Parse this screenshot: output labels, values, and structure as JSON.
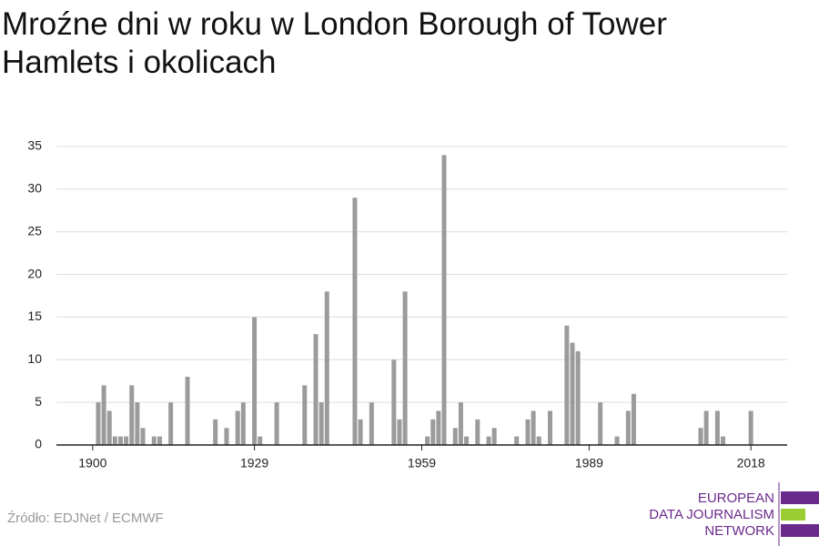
{
  "chart_data": {
    "type": "bar",
    "title": "Mroźne dni w roku w London Borough of Tower Hamlets i okolicach",
    "x": [
      1901,
      1902,
      1903,
      1904,
      1905,
      1906,
      1907,
      1908,
      1909,
      1911,
      1912,
      1914,
      1917,
      1922,
      1924,
      1926,
      1927,
      1929,
      1930,
      1933,
      1938,
      1940,
      1941,
      1942,
      1947,
      1948,
      1950,
      1954,
      1955,
      1956,
      1960,
      1961,
      1962,
      1963,
      1965,
      1966,
      1967,
      1969,
      1971,
      1972,
      1976,
      1978,
      1979,
      1980,
      1982,
      1985,
      1986,
      1987,
      1991,
      1994,
      1996,
      1997,
      2009,
      2010,
      2012,
      2013,
      2018
    ],
    "values": [
      5,
      7,
      4,
      1,
      1,
      1,
      7,
      5,
      2,
      1,
      1,
      5,
      8,
      3,
      2,
      4,
      5,
      15,
      1,
      5,
      7,
      13,
      5,
      18,
      29,
      3,
      5,
      10,
      3,
      18,
      1,
      3,
      4,
      34,
      2,
      5,
      1,
      3,
      1,
      2,
      1,
      3,
      4,
      1,
      4,
      14,
      12,
      11,
      5,
      1,
      4,
      6,
      2,
      4,
      4,
      1,
      4
    ],
    "color": "#9b9b9b",
    "xlim": [
      1893.5,
      2024.5
    ],
    "xticks": [
      1900,
      1929,
      1959,
      1989,
      2018
    ],
    "ylim": [
      0,
      35
    ],
    "yticks": [
      0,
      5,
      10,
      15,
      20,
      25,
      30,
      35
    ],
    "grid": true
  },
  "source": "Źródło: EDJNet / ECMWF",
  "logo": [
    "EUROPEAN",
    "DATA JOURNALISM",
    "NETWORK"
  ]
}
